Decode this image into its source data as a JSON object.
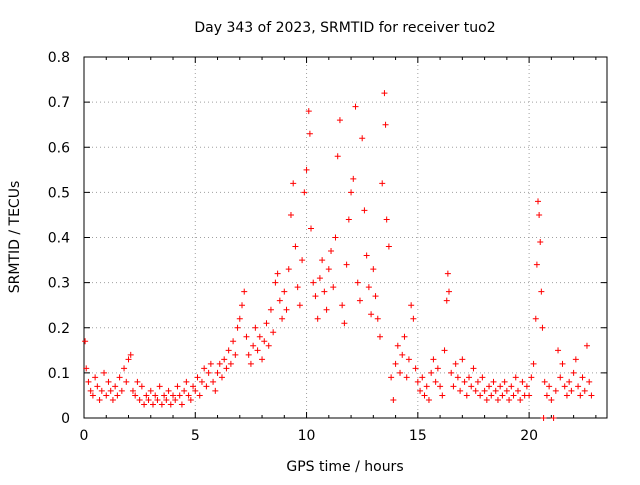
{
  "chart_data": {
    "type": "scatter",
    "title": "Day 343 of 2023, SRMTID for receiver tuo2",
    "xlabel": "GPS time / hours",
    "ylabel": "SRMTID / TECUs",
    "xlim": [
      0,
      23.5
    ],
    "ylim": [
      0,
      0.8
    ],
    "x_ticks": [
      0,
      5,
      10,
      15,
      20
    ],
    "x_tick_labels": [
      "0",
      "5",
      "10",
      "15",
      "20"
    ],
    "y_ticks": [
      0,
      0.1,
      0.2,
      0.3,
      0.4,
      0.5,
      0.6,
      0.7,
      0.8
    ],
    "y_tick_labels": [
      "0",
      "0.1",
      "0.2",
      "0.3",
      "0.4",
      "0.5",
      "0.6",
      "0.7",
      "0.8"
    ],
    "grid": true,
    "marker": "+",
    "color": "#ff0000",
    "series": [
      {
        "name": "SRMTID",
        "points": [
          [
            0.05,
            0.17
          ],
          [
            0.1,
            0.11
          ],
          [
            0.2,
            0.08
          ],
          [
            0.3,
            0.06
          ],
          [
            0.4,
            0.05
          ],
          [
            0.5,
            0.09
          ],
          [
            0.6,
            0.07
          ],
          [
            0.7,
            0.04
          ],
          [
            0.8,
            0.06
          ],
          [
            0.9,
            0.1
          ],
          [
            1.0,
            0.05
          ],
          [
            1.1,
            0.08
          ],
          [
            1.2,
            0.06
          ],
          [
            1.3,
            0.04
          ],
          [
            1.4,
            0.07
          ],
          [
            1.5,
            0.05
          ],
          [
            1.6,
            0.09
          ],
          [
            1.7,
            0.06
          ],
          [
            1.8,
            0.11
          ],
          [
            1.9,
            0.08
          ],
          [
            2.0,
            0.13
          ],
          [
            2.1,
            0.14
          ],
          [
            2.2,
            0.06
          ],
          [
            2.3,
            0.05
          ],
          [
            2.4,
            0.08
          ],
          [
            2.5,
            0.04
          ],
          [
            2.6,
            0.07
          ],
          [
            2.7,
            0.03
          ],
          [
            2.8,
            0.05
          ],
          [
            2.9,
            0.04
          ],
          [
            3.0,
            0.06
          ],
          [
            3.1,
            0.03
          ],
          [
            3.2,
            0.05
          ],
          [
            3.3,
            0.04
          ],
          [
            3.4,
            0.07
          ],
          [
            3.5,
            0.03
          ],
          [
            3.6,
            0.05
          ],
          [
            3.7,
            0.04
          ],
          [
            3.8,
            0.06
          ],
          [
            3.9,
            0.03
          ],
          [
            4.0,
            0.05
          ],
          [
            4.1,
            0.04
          ],
          [
            4.2,
            0.07
          ],
          [
            4.3,
            0.05
          ],
          [
            4.4,
            0.03
          ],
          [
            4.5,
            0.06
          ],
          [
            4.6,
            0.08
          ],
          [
            4.7,
            0.05
          ],
          [
            4.8,
            0.04
          ],
          [
            4.9,
            0.07
          ],
          [
            5.0,
            0.06
          ],
          [
            5.1,
            0.09
          ],
          [
            5.2,
            0.05
          ],
          [
            5.3,
            0.08
          ],
          [
            5.4,
            0.11
          ],
          [
            5.5,
            0.07
          ],
          [
            5.6,
            0.1
          ],
          [
            5.7,
            0.12
          ],
          [
            5.8,
            0.08
          ],
          [
            5.9,
            0.06
          ],
          [
            6.0,
            0.1
          ],
          [
            6.1,
            0.12
          ],
          [
            6.2,
            0.09
          ],
          [
            6.3,
            0.13
          ],
          [
            6.4,
            0.11
          ],
          [
            6.5,
            0.15
          ],
          [
            6.6,
            0.12
          ],
          [
            6.7,
            0.17
          ],
          [
            6.8,
            0.14
          ],
          [
            6.9,
            0.2
          ],
          [
            7.0,
            0.22
          ],
          [
            7.1,
            0.25
          ],
          [
            7.2,
            0.28
          ],
          [
            7.3,
            0.18
          ],
          [
            7.4,
            0.14
          ],
          [
            7.5,
            0.12
          ],
          [
            7.6,
            0.16
          ],
          [
            7.7,
            0.2
          ],
          [
            7.8,
            0.15
          ],
          [
            7.9,
            0.18
          ],
          [
            8.0,
            0.13
          ],
          [
            8.1,
            0.17
          ],
          [
            8.2,
            0.21
          ],
          [
            8.3,
            0.16
          ],
          [
            8.4,
            0.24
          ],
          [
            8.5,
            0.19
          ],
          [
            8.6,
            0.3
          ],
          [
            8.7,
            0.32
          ],
          [
            8.8,
            0.26
          ],
          [
            8.9,
            0.22
          ],
          [
            9.0,
            0.28
          ],
          [
            9.1,
            0.24
          ],
          [
            9.2,
            0.33
          ],
          [
            9.3,
            0.45
          ],
          [
            9.4,
            0.52
          ],
          [
            9.5,
            0.38
          ],
          [
            9.6,
            0.29
          ],
          [
            9.7,
            0.25
          ],
          [
            9.8,
            0.35
          ],
          [
            9.9,
            0.5
          ],
          [
            10.0,
            0.55
          ],
          [
            10.1,
            0.68
          ],
          [
            10.15,
            0.63
          ],
          [
            10.2,
            0.42
          ],
          [
            10.3,
            0.3
          ],
          [
            10.4,
            0.27
          ],
          [
            10.5,
            0.22
          ],
          [
            10.6,
            0.31
          ],
          [
            10.7,
            0.35
          ],
          [
            10.8,
            0.28
          ],
          [
            10.9,
            0.24
          ],
          [
            11.0,
            0.33
          ],
          [
            11.1,
            0.37
          ],
          [
            11.2,
            0.29
          ],
          [
            11.3,
            0.4
          ],
          [
            11.4,
            0.58
          ],
          [
            11.5,
            0.66
          ],
          [
            11.6,
            0.25
          ],
          [
            11.7,
            0.21
          ],
          [
            11.8,
            0.34
          ],
          [
            11.9,
            0.44
          ],
          [
            12.0,
            0.5
          ],
          [
            12.1,
            0.53
          ],
          [
            12.2,
            0.69
          ],
          [
            12.3,
            0.3
          ],
          [
            12.4,
            0.26
          ],
          [
            12.5,
            0.62
          ],
          [
            12.6,
            0.46
          ],
          [
            12.7,
            0.36
          ],
          [
            12.8,
            0.29
          ],
          [
            12.9,
            0.23
          ],
          [
            13.0,
            0.33
          ],
          [
            13.1,
            0.27
          ],
          [
            13.2,
            0.22
          ],
          [
            13.3,
            0.18
          ],
          [
            13.4,
            0.52
          ],
          [
            13.5,
            0.72
          ],
          [
            13.55,
            0.65
          ],
          [
            13.6,
            0.44
          ],
          [
            13.7,
            0.38
          ],
          [
            13.8,
            0.09
          ],
          [
            13.9,
            0.04
          ],
          [
            14.0,
            0.12
          ],
          [
            14.1,
            0.16
          ],
          [
            14.2,
            0.1
          ],
          [
            14.3,
            0.14
          ],
          [
            14.4,
            0.18
          ],
          [
            14.5,
            0.09
          ],
          [
            14.6,
            0.13
          ],
          [
            14.7,
            0.25
          ],
          [
            14.8,
            0.22
          ],
          [
            14.9,
            0.11
          ],
          [
            15.0,
            0.08
          ],
          [
            15.1,
            0.06
          ],
          [
            15.2,
            0.09
          ],
          [
            15.3,
            0.05
          ],
          [
            15.4,
            0.07
          ],
          [
            15.5,
            0.04
          ],
          [
            15.6,
            0.1
          ],
          [
            15.7,
            0.13
          ],
          [
            15.8,
            0.08
          ],
          [
            15.9,
            0.11
          ],
          [
            16.0,
            0.07
          ],
          [
            16.1,
            0.05
          ],
          [
            16.2,
            0.15
          ],
          [
            16.3,
            0.26
          ],
          [
            16.35,
            0.32
          ],
          [
            16.4,
            0.28
          ],
          [
            16.5,
            0.1
          ],
          [
            16.6,
            0.07
          ],
          [
            16.7,
            0.12
          ],
          [
            16.8,
            0.09
          ],
          [
            16.9,
            0.06
          ],
          [
            17.0,
            0.13
          ],
          [
            17.1,
            0.08
          ],
          [
            17.2,
            0.05
          ],
          [
            17.3,
            0.09
          ],
          [
            17.4,
            0.07
          ],
          [
            17.5,
            0.11
          ],
          [
            17.6,
            0.06
          ],
          [
            17.7,
            0.08
          ],
          [
            17.8,
            0.05
          ],
          [
            17.9,
            0.09
          ],
          [
            18.0,
            0.06
          ],
          [
            18.1,
            0.04
          ],
          [
            18.2,
            0.07
          ],
          [
            18.3,
            0.05
          ],
          [
            18.4,
            0.08
          ],
          [
            18.5,
            0.06
          ],
          [
            18.6,
            0.04
          ],
          [
            18.7,
            0.07
          ],
          [
            18.8,
            0.05
          ],
          [
            18.9,
            0.08
          ],
          [
            19.0,
            0.06
          ],
          [
            19.1,
            0.04
          ],
          [
            19.2,
            0.07
          ],
          [
            19.3,
            0.05
          ],
          [
            19.4,
            0.09
          ],
          [
            19.5,
            0.06
          ],
          [
            19.6,
            0.04
          ],
          [
            19.7,
            0.08
          ],
          [
            19.8,
            0.05
          ],
          [
            19.9,
            0.07
          ],
          [
            20.0,
            0.05
          ],
          [
            20.1,
            0.09
          ],
          [
            20.2,
            0.12
          ],
          [
            20.3,
            0.22
          ],
          [
            20.35,
            0.34
          ],
          [
            20.4,
            0.48
          ],
          [
            20.45,
            0.45
          ],
          [
            20.5,
            0.39
          ],
          [
            20.55,
            0.28
          ],
          [
            20.6,
            0.2
          ],
          [
            20.65,
            0.0
          ],
          [
            20.7,
            0.08
          ],
          [
            20.8,
            0.05
          ],
          [
            20.9,
            0.07
          ],
          [
            21.0,
            0.04
          ],
          [
            21.1,
            0.0
          ],
          [
            21.2,
            0.06
          ],
          [
            21.3,
            0.15
          ],
          [
            21.4,
            0.09
          ],
          [
            21.5,
            0.12
          ],
          [
            21.6,
            0.07
          ],
          [
            21.7,
            0.05
          ],
          [
            21.8,
            0.08
          ],
          [
            21.9,
            0.06
          ],
          [
            22.0,
            0.1
          ],
          [
            22.1,
            0.13
          ],
          [
            22.2,
            0.07
          ],
          [
            22.3,
            0.05
          ],
          [
            22.4,
            0.09
          ],
          [
            22.5,
            0.06
          ],
          [
            22.6,
            0.16
          ],
          [
            22.7,
            0.08
          ],
          [
            22.8,
            0.05
          ]
        ]
      }
    ]
  }
}
